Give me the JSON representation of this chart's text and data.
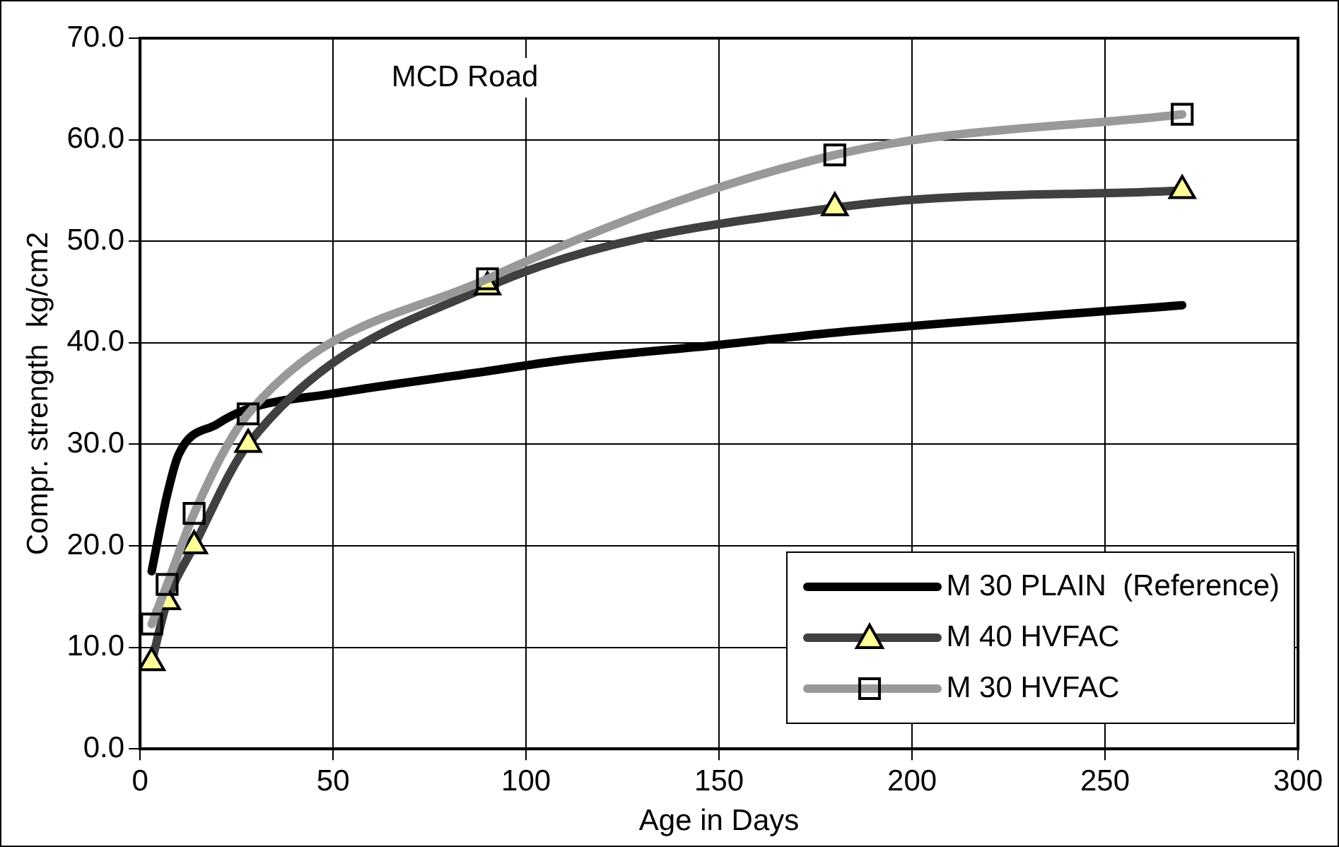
{
  "chart_data": {
    "type": "line",
    "xlabel": "Age in Days",
    "ylabel": "Compr. strength  kg/cm2",
    "annotations": [
      "MCD Road"
    ],
    "xlim": [
      0,
      300
    ],
    "xticks": [
      0,
      50,
      100,
      150,
      200,
      250,
      300
    ],
    "ylim": [
      0,
      70
    ],
    "yticks": [
      {
        "value": 0,
        "label": "0.0"
      },
      {
        "value": 10,
        "label": "10.0"
      },
      {
        "value": 20,
        "label": "20.0"
      },
      {
        "value": 30,
        "label": "30.0"
      },
      {
        "value": 40,
        "label": "40.0"
      },
      {
        "value": 50,
        "label": "50.0"
      },
      {
        "value": 60,
        "label": "60.0"
      },
      {
        "value": 70,
        "label": "70.0"
      }
    ],
    "grid": true,
    "legend": "bottom right",
    "line_style": "solid",
    "series": [
      {
        "name": "M 30 PLAIN  (Reference)",
        "color": "#000000",
        "marker": "none",
        "x": [
          3,
          7,
          10,
          20,
          28,
          50,
          90,
          110,
          150,
          180,
          270
        ],
        "values": [
          17.5,
          25,
          29,
          32,
          33.5,
          35,
          37.2,
          38.3,
          39.8,
          41,
          43.7
        ]
      },
      {
        "name": "M 40 HVFAC",
        "color": "#404040",
        "marker": "triangle",
        "x": [
          3,
          7,
          14,
          28,
          90,
          180,
          270
        ],
        "values": [
          8.5,
          14.5,
          20,
          30,
          45.5,
          53.3,
          55
        ]
      },
      {
        "name": "M 30 HVFAC",
        "color": "#999999",
        "marker": "square",
        "x": [
          3,
          7,
          14,
          28,
          90,
          180,
          270
        ],
        "values": [
          12.3,
          16.2,
          23.2,
          33,
          46.3,
          58.5,
          62.5
        ]
      }
    ]
  }
}
